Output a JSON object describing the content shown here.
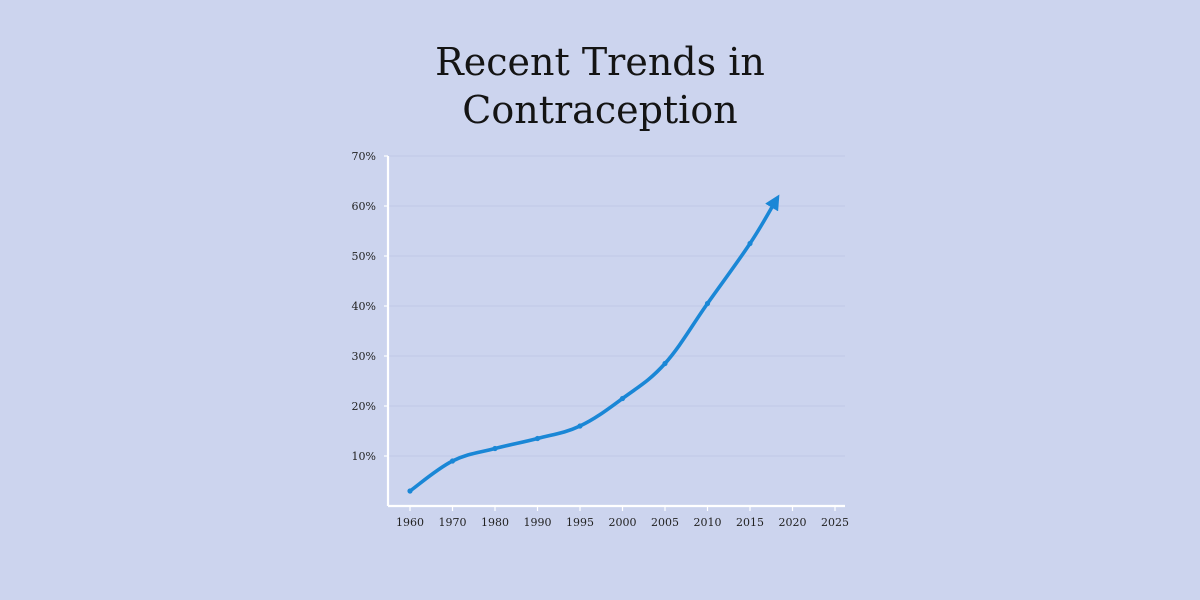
{
  "chart_data": {
    "type": "line",
    "title_lines": [
      "Recent Trends in",
      "Contraception"
    ],
    "xlabel": "",
    "ylabel": "",
    "categories": [
      "1960",
      "1970",
      "1980",
      "1990",
      "1995",
      "2000",
      "2005",
      "2010",
      "2015",
      "2020",
      "2025"
    ],
    "y_ticks": [
      10,
      20,
      30,
      40,
      50,
      60,
      70
    ],
    "y_tick_labels": [
      "10%",
      "20%",
      "30%",
      "40%",
      "50%",
      "60%",
      "70%"
    ],
    "ylim": [
      0,
      70
    ],
    "grid": true,
    "series": [
      {
        "color": "#1a87d6",
        "x": [
          "1960",
          "1970",
          "1980",
          "1990",
          "1995",
          "2000",
          "2005",
          "2010",
          "2015",
          "2018"
        ],
        "values": [
          3,
          9,
          11.5,
          13.5,
          16,
          21.5,
          28.5,
          40.5,
          52.5,
          61
        ],
        "end_marker": "arrow"
      }
    ]
  }
}
